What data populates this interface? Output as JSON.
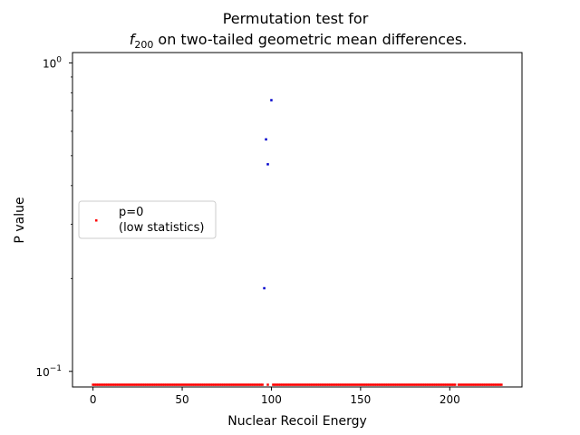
{
  "chart_data": {
    "type": "scatter",
    "title": {
      "line1": "Permutation test for",
      "func": "f",
      "func_subscript": "200",
      "line2_rest": " on two-tailed geometric mean differences."
    },
    "xlabel": "Nuclear Recoil Energy",
    "ylabel": "P value",
    "xlim": [
      -11.5,
      240.5
    ],
    "ylim": [
      0.089,
      1.08
    ],
    "y_scale": "log",
    "x_ticks": [
      0,
      50,
      100,
      150,
      200
    ],
    "x_tick_labels": [
      "0",
      "50",
      "100",
      "150",
      "200"
    ],
    "y_ticks": [
      1.0,
      0.1
    ],
    "y_tick_labels": [
      {
        "base": "10",
        "exp": "0"
      },
      {
        "base": "10",
        "exp": "−1"
      }
    ],
    "grid": false,
    "legend": {
      "placement": "center-left",
      "entries": [
        {
          "label_lines": [
            "p=0",
            "(low statistics)"
          ],
          "color": "#ff0000",
          "marker": "point"
        }
      ]
    },
    "series": [
      {
        "name": "p=0\n(low statistics)",
        "color": "#ff0000",
        "x_start": 0,
        "x_end": 229,
        "x_step": 1,
        "x_exclude": [
          96,
          97,
          99,
          100,
          204
        ],
        "y_constant": 0.0905
      },
      {
        "color": "#0000cc",
        "points": [
          {
            "x": 96,
            "y": 0.186
          },
          {
            "x": 97,
            "y": 0.565
          },
          {
            "x": 98,
            "y": 0.469
          },
          {
            "x": 100,
            "y": 0.757
          }
        ]
      }
    ],
    "colors": {
      "axes": "#000000",
      "background": "#ffffff"
    }
  }
}
